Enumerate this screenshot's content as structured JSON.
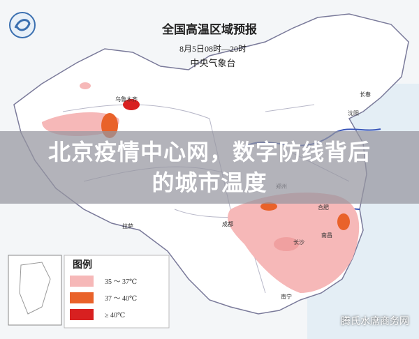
{
  "headline": "北京疫情中心网，数字防线背后的城市温度",
  "map": {
    "title": "全国高温区域预报",
    "time": "8月5日08时—20时",
    "source": "中央气象台",
    "cities": [
      "乌鲁木齐",
      "拉萨",
      "成都",
      "郑州",
      "合肥",
      "长沙",
      "南昌",
      "南宁",
      "沈阳",
      "长春"
    ],
    "legend": {
      "title": "图例",
      "items": [
        {
          "label": "35 ～ 37℃",
          "color": "#f6b8b8"
        },
        {
          "label": "37 ～ 40℃",
          "color": "#e9622a"
        },
        {
          "label": "≥ 40℃",
          "color": "#d82020"
        }
      ]
    }
  },
  "watermark": "腾氏水席商务网"
}
